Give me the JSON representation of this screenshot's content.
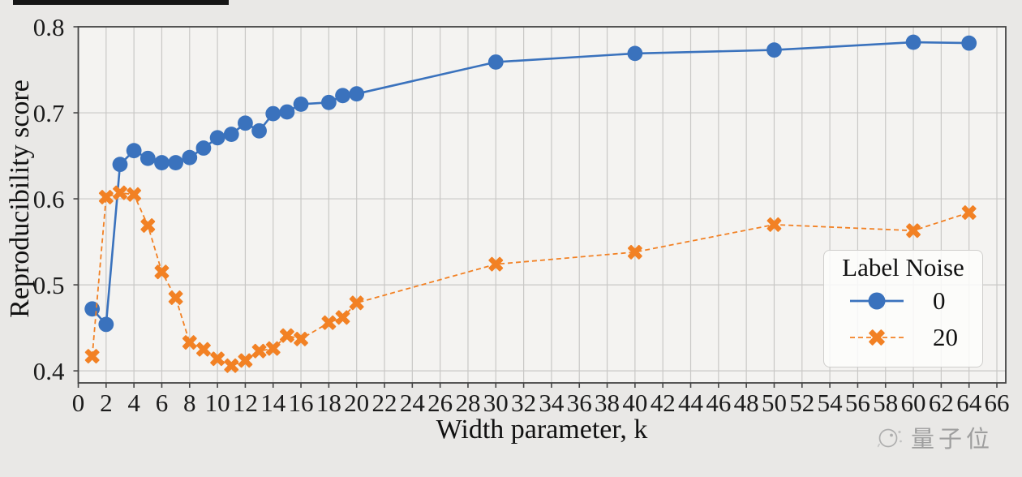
{
  "colors": {
    "page_bg": "#e9e8e6",
    "plot_bg": "#f4f3f1",
    "grid": "#c9c8c6",
    "border": "#454545",
    "tick_text": "#1c1c1c",
    "series_blue": "#3a72bd",
    "series_orange": "#f28124",
    "watermark_grey": "#9e9e9e"
  },
  "chart_data": {
    "type": "line",
    "title": "",
    "xlabel": "Width parameter, k",
    "ylabel": "Reproducibility score",
    "xlim": [
      0,
      66.64
    ],
    "ylim": [
      0.386,
      0.8
    ],
    "grid": true,
    "x_ticks": [
      0,
      2,
      4,
      6,
      8,
      10,
      12,
      14,
      16,
      18,
      20,
      22,
      24,
      26,
      28,
      30,
      32,
      34,
      36,
      38,
      40,
      42,
      44,
      46,
      48,
      50,
      52,
      54,
      56,
      58,
      60,
      62,
      64,
      66
    ],
    "y_ticks": [
      "0.4",
      "0.5",
      "0.6",
      "0.7",
      "0.8"
    ],
    "legend": {
      "title": "Label Noise",
      "position": "lower right"
    },
    "series": [
      {
        "name": "0",
        "color": "#3a72bd",
        "line_style": "solid",
        "marker": "circle",
        "points": [
          [
            1,
            0.472
          ],
          [
            2,
            0.454
          ],
          [
            3,
            0.64
          ],
          [
            4,
            0.656
          ],
          [
            5,
            0.647
          ],
          [
            6,
            0.642
          ],
          [
            7,
            0.642
          ],
          [
            8,
            0.648
          ],
          [
            9,
            0.659
          ],
          [
            10,
            0.671
          ],
          [
            11,
            0.675
          ],
          [
            12,
            0.688
          ],
          [
            13,
            0.679
          ],
          [
            14,
            0.699
          ],
          [
            15,
            0.701
          ],
          [
            16,
            0.71
          ],
          [
            18,
            0.712
          ],
          [
            19,
            0.72
          ],
          [
            20,
            0.722
          ],
          [
            30,
            0.759
          ],
          [
            40,
            0.769
          ],
          [
            50,
            0.773
          ],
          [
            60,
            0.782
          ],
          [
            64,
            0.781
          ]
        ]
      },
      {
        "name": "20",
        "color": "#f28124",
        "line_style": "dashed",
        "marker": "x",
        "points": [
          [
            1,
            0.417
          ],
          [
            2,
            0.602
          ],
          [
            3,
            0.607
          ],
          [
            4,
            0.605
          ],
          [
            5,
            0.569
          ],
          [
            6,
            0.515
          ],
          [
            7,
            0.485
          ],
          [
            8,
            0.433
          ],
          [
            9,
            0.425
          ],
          [
            10,
            0.414
          ],
          [
            11,
            0.406
          ],
          [
            12,
            0.412
          ],
          [
            13,
            0.423
          ],
          [
            14,
            0.426
          ],
          [
            15,
            0.441
          ],
          [
            16,
            0.437
          ],
          [
            18,
            0.456
          ],
          [
            19,
            0.462
          ],
          [
            20,
            0.479
          ],
          [
            30,
            0.524
          ],
          [
            40,
            0.538
          ],
          [
            50,
            0.57
          ],
          [
            60,
            0.563
          ],
          [
            64,
            0.584
          ]
        ]
      }
    ]
  },
  "watermark": {
    "text": "量子位"
  }
}
